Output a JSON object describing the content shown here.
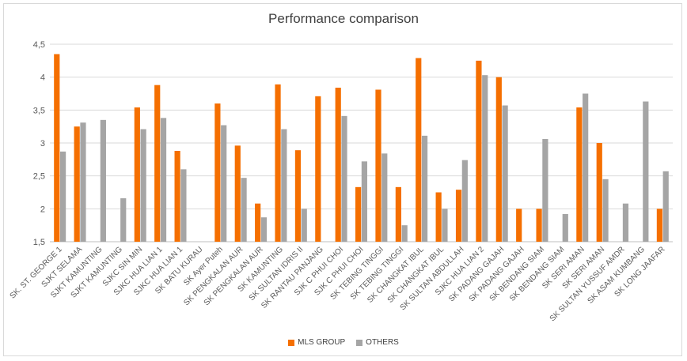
{
  "chart_data": {
    "type": "bar",
    "title": "Performance comparison",
    "xlabel": "",
    "ylabel": "",
    "ylim": [
      1.5,
      4.5
    ],
    "yticks": [
      "1,5",
      "2",
      "2,5",
      "3",
      "3,5",
      "4",
      "4,5"
    ],
    "grid": true,
    "legend_position": "bottom",
    "categories": [
      "SK. ST. GEORGE 1",
      "SJKT SELAMA",
      "SJKT KAMUNTING",
      "SJKT KAMUNTING",
      "SJKC SIN MIN",
      "SJKC HUA LIAN 1",
      "SJKC HUA LIAN 1",
      "SK BATU KURAU",
      "SK Ayer Puteh",
      "SK PENGKALAN AUR",
      "SK PENGKALAN AUR",
      "SK KAMUNTING",
      "SK SULTAN IDRIS II",
      "SK RANTAU PANJANG",
      "SJK C PHUI CHOI",
      "SJK C PHUI CHOI",
      "SK TEBING TINGGI",
      "SK TEBING TINGGI",
      "SK CHANGKAT IBUL",
      "SK CHANGKAT IBUL",
      "SK SULTAN ABDULLAH",
      "SJKC HUA LIAN 2",
      "SK PADANG GAJAH",
      "SK PADANG GAJAH",
      "SK BENDANG SIAM",
      "SK BENDANG SIAM",
      "SK SERI AMAN",
      "SK SERI AMAN",
      "SK SULTAN YUSSUF AMDR",
      "SK ASAM KUMBANG",
      "SK LONG JAAFAR"
    ],
    "series": [
      {
        "name": "MLS GROUP",
        "color": "#f56f00",
        "values": [
          4.35,
          3.25,
          null,
          null,
          3.54,
          3.88,
          2.88,
          null,
          3.6,
          2.96,
          2.08,
          3.89,
          2.89,
          3.71,
          3.84,
          2.33,
          3.81,
          2.33,
          4.29,
          2.25,
          2.29,
          4.25,
          4.0,
          2.0,
          2.0,
          null,
          3.54,
          3.0,
          null,
          null,
          2.0
        ]
      },
      {
        "name": "OTHERS",
        "color": "#a5a5a5",
        "values": [
          2.87,
          3.31,
          3.35,
          2.16,
          3.21,
          3.38,
          2.6,
          null,
          3.27,
          2.47,
          1.87,
          3.21,
          2.0,
          null,
          3.41,
          2.72,
          2.84,
          1.75,
          3.11,
          2.0,
          2.74,
          4.03,
          3.57,
          null,
          3.06,
          1.92,
          3.75,
          2.45,
          2.08,
          3.63,
          2.57
        ]
      }
    ]
  }
}
